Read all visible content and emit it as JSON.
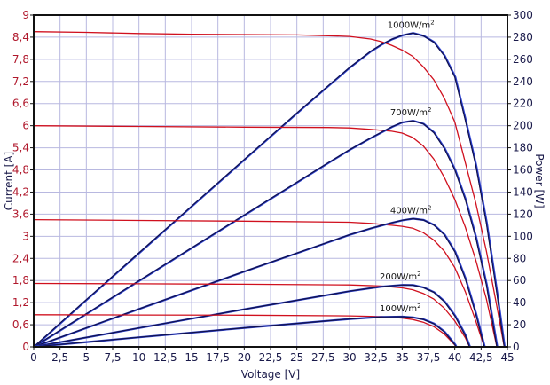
{
  "chart_data": {
    "type": "line",
    "title": "",
    "xlabel": "Voltage [V]",
    "ylabel": "Current [A]",
    "y2label": "Power [W]",
    "xlim": [
      0,
      45
    ],
    "ylim": [
      0,
      9
    ],
    "y2lim": [
      0,
      300
    ],
    "grid": true,
    "x_ticks": [
      "0",
      "2,5",
      "5",
      "7,5",
      "10",
      "12,5",
      "15",
      "17,5",
      "20",
      "22,5",
      "25",
      "27,5",
      "30",
      "32,5",
      "35",
      "37,5",
      "40",
      "42,5",
      "45"
    ],
    "y_ticks": [
      "0",
      "0,6",
      "1,2",
      "1,8",
      "2,4",
      "3",
      "3,6",
      "4,2",
      "4,8",
      "5,4",
      "6",
      "6,6",
      "7,2",
      "7,8",
      "8,4",
      "9"
    ],
    "y2_ticks": [
      "0",
      "20",
      "40",
      "60",
      "80",
      "100",
      "120",
      "140",
      "160",
      "180",
      "200",
      "220",
      "240",
      "260",
      "280",
      "300"
    ],
    "colors": {
      "current": "#d0101e",
      "power": "#12124a",
      "power_edge": "#2a3fd0",
      "grid": "#b8b8e0",
      "left_axis": "#b0182c"
    },
    "series": [
      {
        "name": "1000W/m²",
        "label": "1000W/m",
        "sup": "2",
        "iv": [
          [
            0,
            8.55
          ],
          [
            5,
            8.53
          ],
          [
            10,
            8.5
          ],
          [
            15,
            8.48
          ],
          [
            20,
            8.47
          ],
          [
            25,
            8.46
          ],
          [
            28,
            8.44
          ],
          [
            30,
            8.42
          ],
          [
            32,
            8.35
          ],
          [
            33,
            8.28
          ],
          [
            34,
            8.18
          ],
          [
            35,
            8.05
          ],
          [
            36,
            7.88
          ],
          [
            37,
            7.6
          ],
          [
            38,
            7.25
          ],
          [
            39,
            6.75
          ],
          [
            40,
            6.1
          ],
          [
            41,
            5.0
          ],
          [
            42,
            3.9
          ],
          [
            43,
            2.6
          ],
          [
            44,
            1.1
          ],
          [
            44.7,
            0
          ]
        ]
      },
      {
        "name": "700W/m²",
        "label": "700W/m",
        "sup": "2",
        "iv": [
          [
            0,
            6.0
          ],
          [
            10,
            5.98
          ],
          [
            20,
            5.96
          ],
          [
            28,
            5.95
          ],
          [
            30,
            5.94
          ],
          [
            32,
            5.9
          ],
          [
            34,
            5.85
          ],
          [
            35,
            5.8
          ],
          [
            36,
            5.68
          ],
          [
            37,
            5.45
          ],
          [
            38,
            5.1
          ],
          [
            39,
            4.6
          ],
          [
            40,
            4.0
          ],
          [
            41,
            3.25
          ],
          [
            42,
            2.35
          ],
          [
            43,
            1.3
          ],
          [
            44,
            0
          ]
        ]
      },
      {
        "name": "400W/m²",
        "label": "400W/m",
        "sup": "2",
        "iv": [
          [
            0,
            3.45
          ],
          [
            10,
            3.43
          ],
          [
            20,
            3.41
          ],
          [
            30,
            3.38
          ],
          [
            32,
            3.35
          ],
          [
            34,
            3.3
          ],
          [
            35,
            3.27
          ],
          [
            36,
            3.22
          ],
          [
            37,
            3.1
          ],
          [
            38,
            2.9
          ],
          [
            39,
            2.6
          ],
          [
            40,
            2.15
          ],
          [
            41,
            1.5
          ],
          [
            42,
            0.7
          ],
          [
            42.8,
            0
          ]
        ]
      },
      {
        "name": "200W/m²",
        "label": "200W/m",
        "sup": "2",
        "iv": [
          [
            0,
            1.72
          ],
          [
            10,
            1.71
          ],
          [
            20,
            1.7
          ],
          [
            30,
            1.68
          ],
          [
            33,
            1.65
          ],
          [
            35,
            1.6
          ],
          [
            36,
            1.55
          ],
          [
            37,
            1.45
          ],
          [
            38,
            1.3
          ],
          [
            39,
            1.05
          ],
          [
            40,
            0.7
          ],
          [
            41,
            0.25
          ],
          [
            41.4,
            0
          ]
        ]
      },
      {
        "name": "100W/m²",
        "label": "100W/m",
        "sup": "2",
        "iv": [
          [
            0,
            0.87
          ],
          [
            10,
            0.865
          ],
          [
            20,
            0.86
          ],
          [
            30,
            0.84
          ],
          [
            33,
            0.82
          ],
          [
            35,
            0.78
          ],
          [
            36,
            0.74
          ],
          [
            37,
            0.67
          ],
          [
            38,
            0.55
          ],
          [
            39,
            0.35
          ],
          [
            40,
            0.05
          ],
          [
            40.1,
            0
          ]
        ]
      }
    ]
  }
}
